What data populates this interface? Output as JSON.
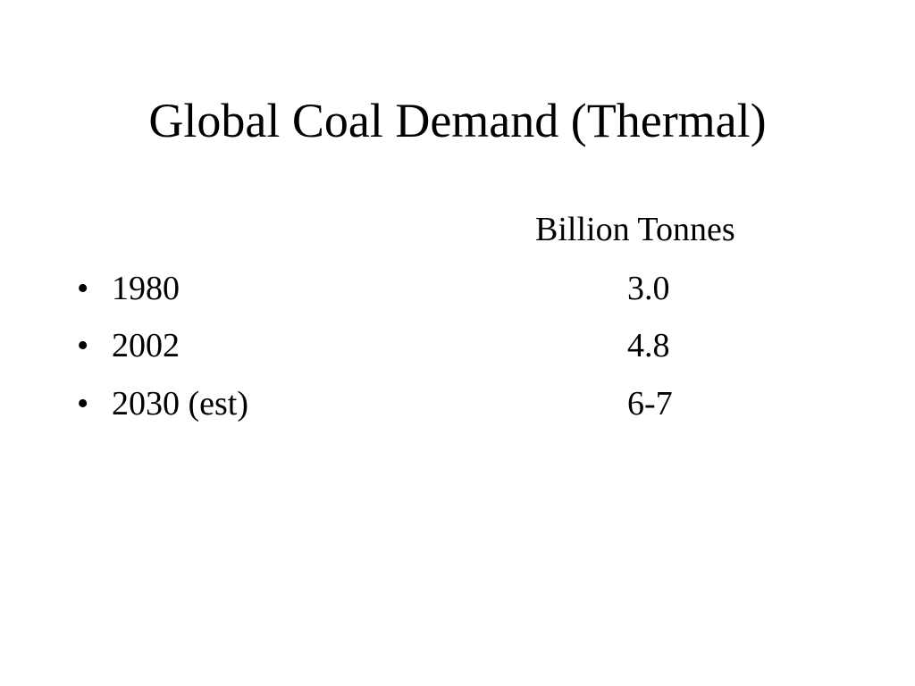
{
  "slide": {
    "title": "Global Coal Demand (Thermal)",
    "column_header": "Billion Tonnes",
    "bullet_glyph": "•",
    "rows": [
      {
        "label": "1980",
        "value": "3.0"
      },
      {
        "label": "2002",
        "value": "4.8"
      },
      {
        "label": "2030 (est)",
        "value": "6-7"
      }
    ]
  },
  "colors": {
    "background": "#ffffff",
    "text": "#000000"
  }
}
